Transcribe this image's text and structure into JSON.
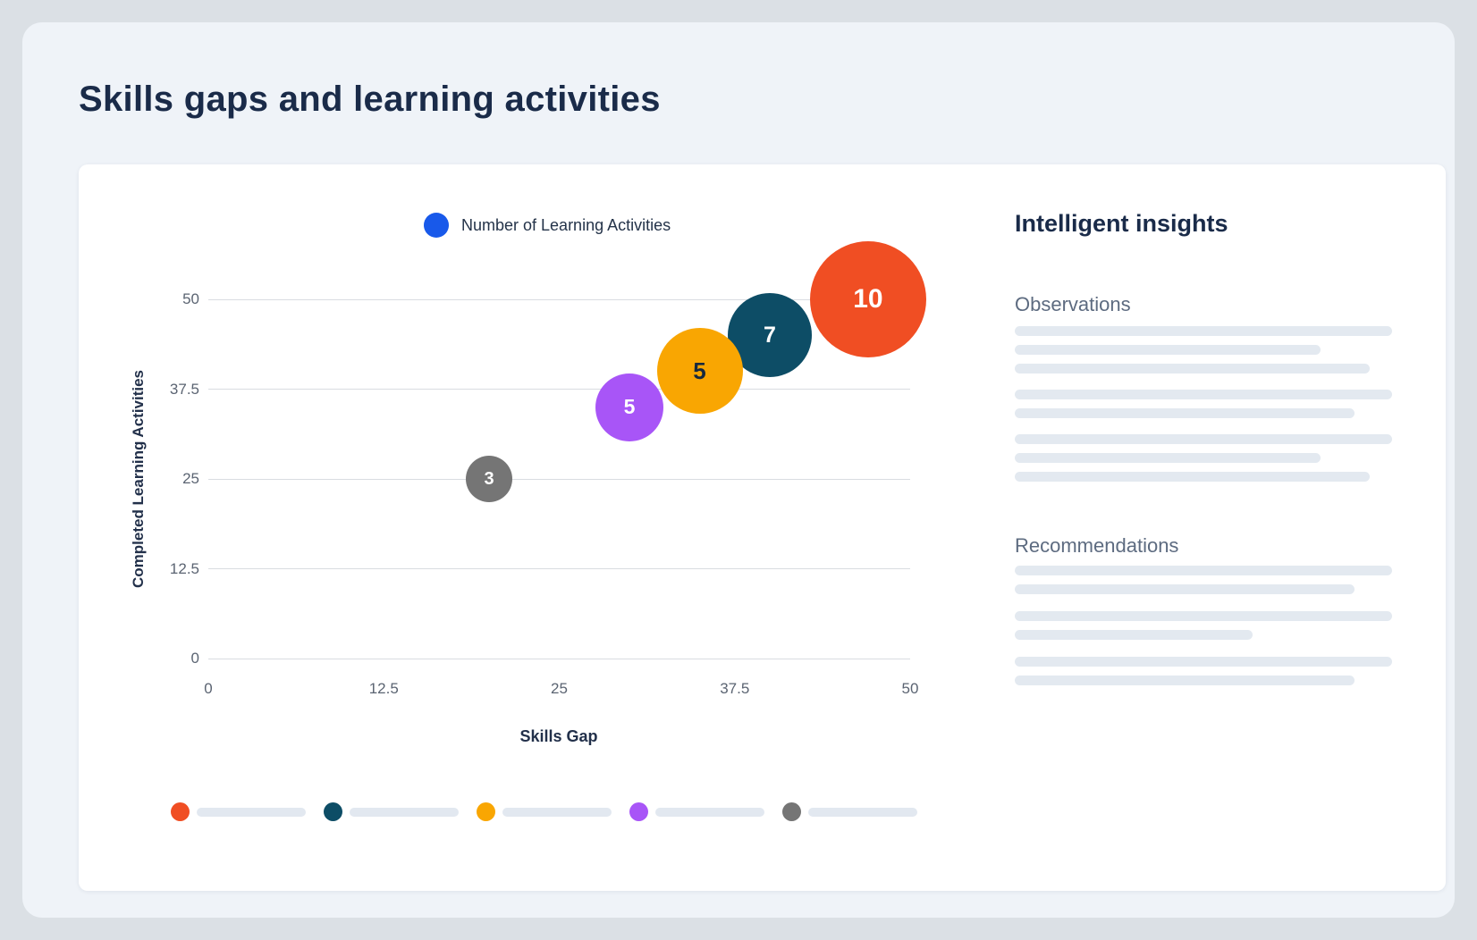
{
  "page": {
    "title": "Skills gaps and learning activities"
  },
  "chart_data": {
    "type": "scatter",
    "subtype": "bubble",
    "title": "Skills gaps and learning activities",
    "xlabel": "Skills Gap",
    "ylabel": "Completed Learning Activities",
    "xlim": [
      0,
      50
    ],
    "ylim": [
      0,
      50
    ],
    "x_ticks": [
      "0",
      "12.5",
      "25",
      "37.5",
      "50"
    ],
    "y_ticks": [
      "0",
      "12.5",
      "25",
      "37.5",
      "50"
    ],
    "grid": "horizontal",
    "legend": {
      "label": "Number of Learning Activities",
      "color": "#1859ea",
      "position": "top"
    },
    "points": [
      {
        "x": 20,
        "y": 25,
        "value": 3,
        "color": "#757575",
        "label_color": "#ffffff",
        "r": 26
      },
      {
        "x": 30,
        "y": 35,
        "value": 5,
        "color": "#a855f7",
        "label_color": "#ffffff",
        "r": 38
      },
      {
        "x": 40,
        "y": 45,
        "value": 7,
        "color": "#0d4d66",
        "label_color": "#ffffff",
        "r": 47
      },
      {
        "x": 35,
        "y": 40,
        "value": 5,
        "color": "#f9a602",
        "label_color": "#17293e",
        "r": 48
      },
      {
        "x": 47,
        "y": 50,
        "value": 10,
        "color": "#f04e23",
        "label_color": "#ffffff",
        "r": 65
      }
    ],
    "series_legend": [
      {
        "color": "#f04e23"
      },
      {
        "color": "#0d4d66"
      },
      {
        "color": "#f9a602"
      },
      {
        "color": "#a855f7"
      },
      {
        "color": "#757575"
      }
    ]
  },
  "insights": {
    "title": "Intelligent insights",
    "sections": [
      {
        "heading": "Observations",
        "groups": [
          [
            100,
            81,
            94
          ],
          [
            100,
            90
          ],
          [
            100,
            81,
            94
          ]
        ]
      },
      {
        "heading": "Recommendations",
        "groups": [
          [
            100,
            90
          ],
          [
            100,
            63
          ],
          [
            100,
            90
          ]
        ]
      }
    ]
  }
}
